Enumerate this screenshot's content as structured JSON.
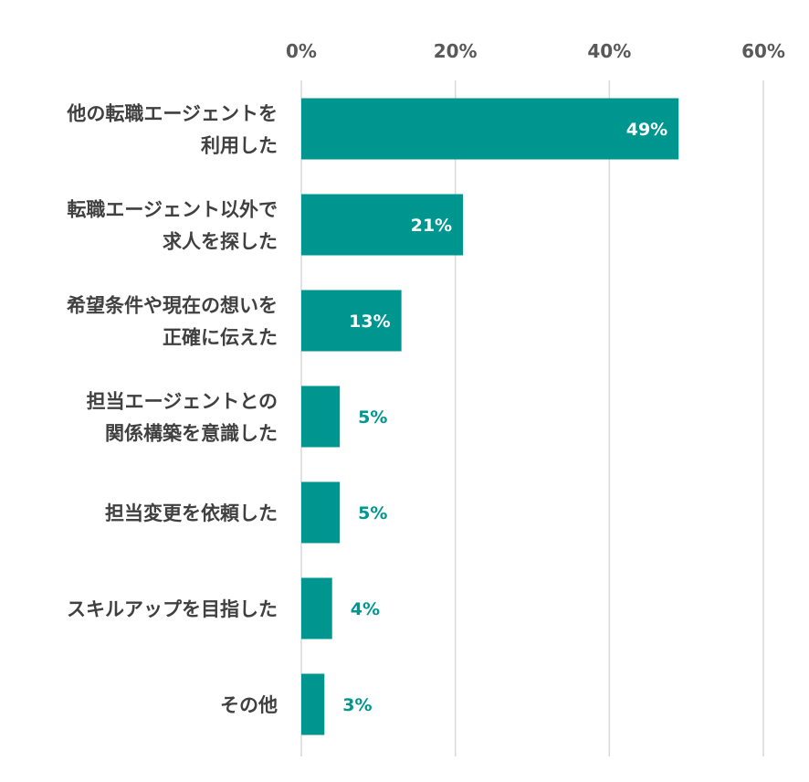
{
  "chart_data": {
    "type": "bar",
    "orientation": "horizontal",
    "title": "",
    "xlabel": "",
    "ylabel": "",
    "xlim": [
      0,
      60
    ],
    "tick_values": [
      0,
      20,
      40,
      60
    ],
    "tick_labels": [
      "0%",
      "20%",
      "40%",
      "60%"
    ],
    "grid": true,
    "axis_position": "top",
    "categories": [
      [
        "他の転職エージェントを",
        "利用した"
      ],
      [
        "転職エージェント以外で",
        "求人を探した"
      ],
      [
        "希望条件や現在の想いを",
        "正確に伝えた"
      ],
      [
        "担当エージェントとの",
        "関係構築を意識した"
      ],
      [
        "担当変更を依頼した"
      ],
      [
        "スキルアップを目指した"
      ],
      [
        "その他"
      ]
    ],
    "values": [
      49,
      21,
      13,
      5,
      5,
      4,
      3
    ],
    "data_labels": [
      "49%",
      "21%",
      "13%",
      "5%",
      "5%",
      "4%",
      "3%"
    ],
    "bar_color": "#009690",
    "label_inside_color": "#ffffff",
    "label_outside_color": "#009690"
  }
}
